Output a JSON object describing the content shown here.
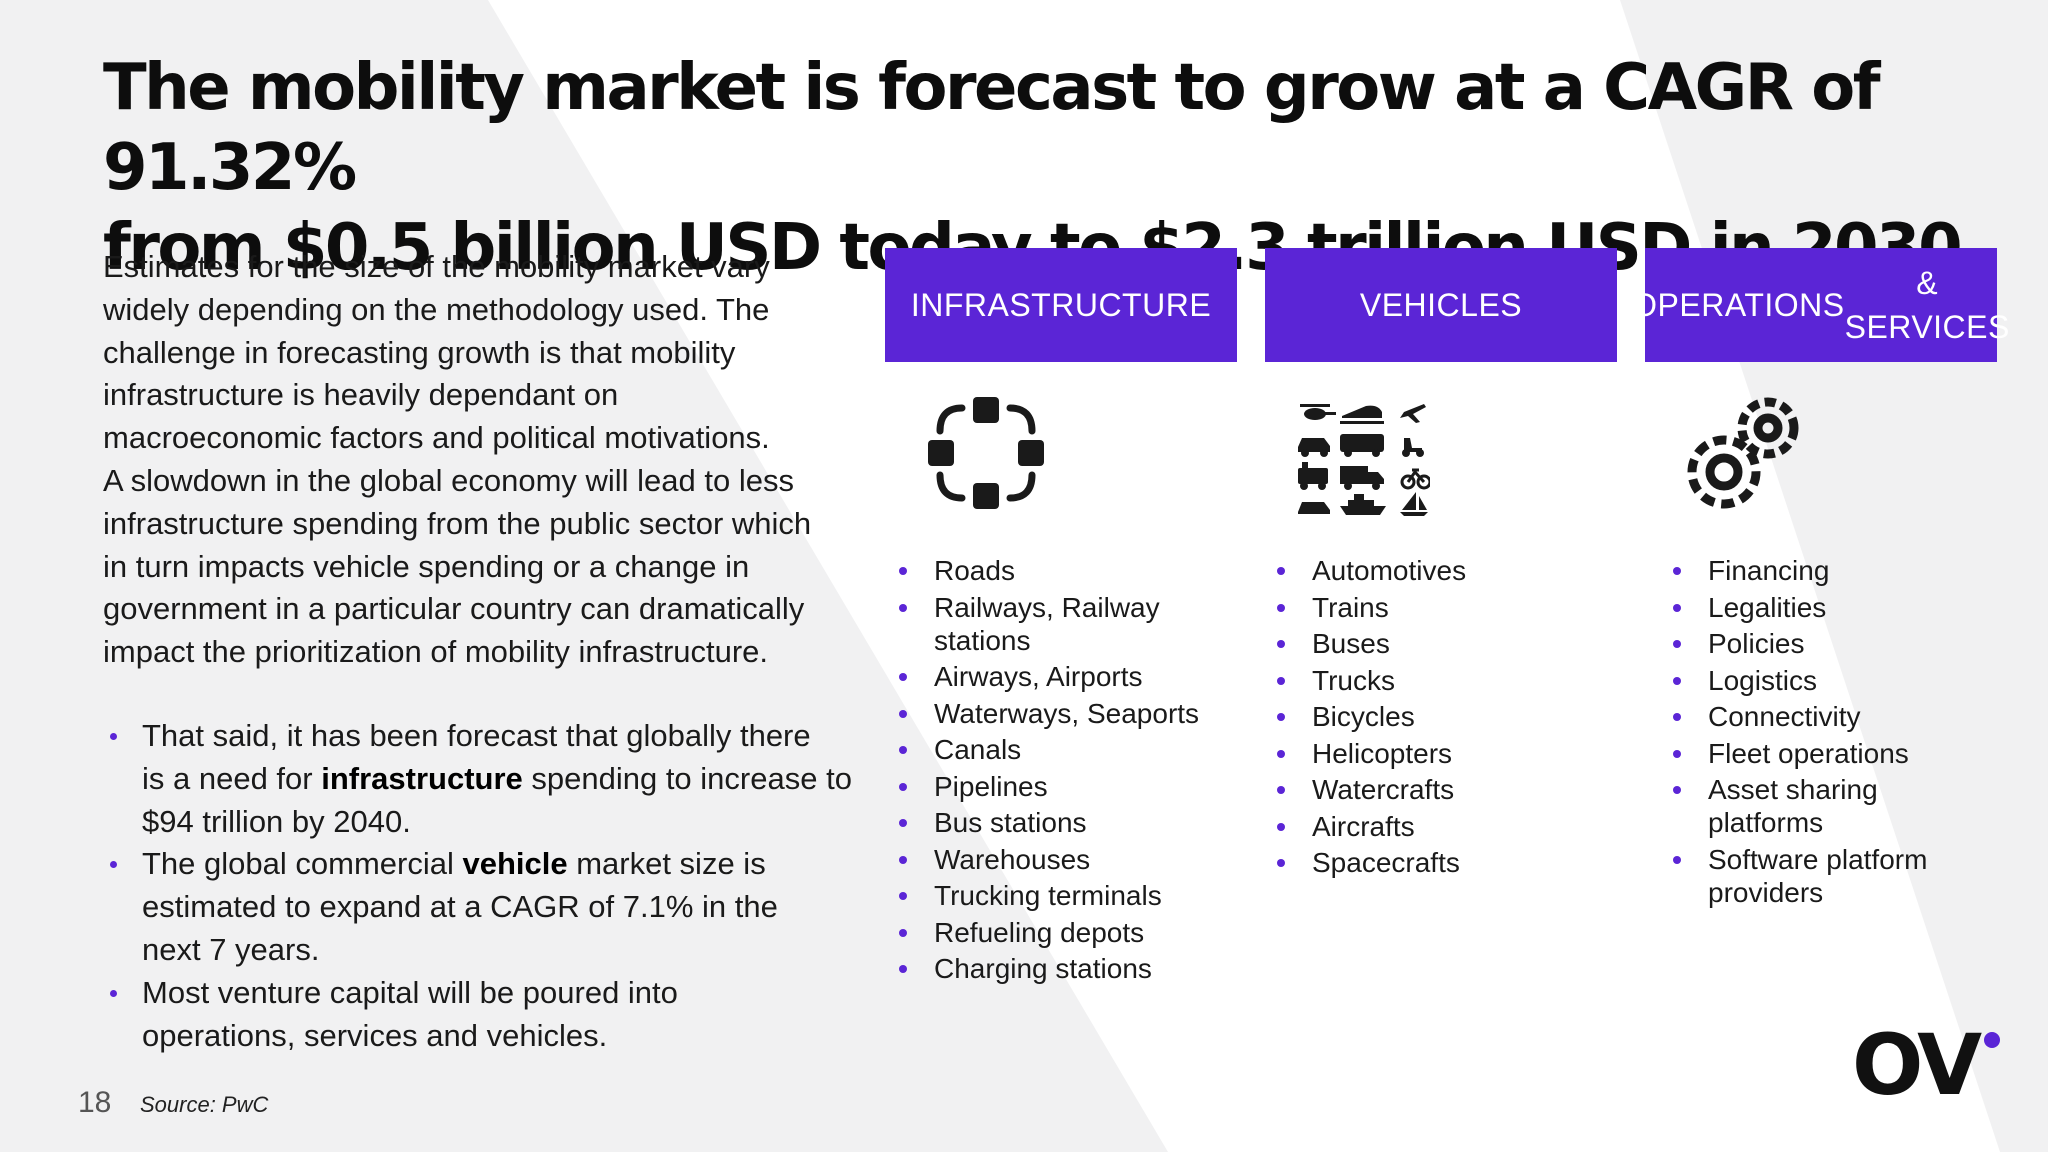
{
  "title_line1": "The mobility market is forecast to grow at a CAGR of 91.32%",
  "title_line2": "from $0.5 billion USD today to $2.3 trillion USD in 2030.",
  "intro": {
    "l1": "Estimates for the size of the mobility market vary",
    "l2": "widely depending on the methodology used. The",
    "l3": "challenge in forecasting growth is that mobility",
    "l4": "infrastructure is heavily dependant on",
    "l5": "macroeconomic factors and political motivations.",
    "l6": "A slowdown in the global economy will lead to less",
    "l7": "infrastructure spending from the public sector which",
    "l8": "in turn impacts vehicle spending or a change in",
    "l9": "government in a particular country can dramatically",
    "l10": "impact the prioritization of mobility infrastructure."
  },
  "bullets": {
    "b1_l1": "That said, it has been forecast that globally there",
    "b1_pre": "is a need for ",
    "b1_bold": "infrastructure",
    "b1_post": " spending to increase to",
    "b1_l3": "$94 trillion by 2040.",
    "b2_pre": "The global commercial ",
    "b2_bold": "vehicle",
    "b2_post": " market size is",
    "b2_l2": "estimated to expand at a CAGR of 7.1% in the",
    "b2_l3": "next 7 years.",
    "b3_l1": "Most venture capital will be poured into",
    "b3_l2": "operations, services and vehicles."
  },
  "columns": {
    "infrastructure": {
      "header": "INFRASTRUCTURE",
      "icon": "nodes-icon",
      "items": [
        "Roads",
        "Railways, Railway stations",
        "Airways, Airports",
        "Waterways, Seaports",
        "Canals",
        "Pipelines",
        "Bus stations",
        "Warehouses",
        "Trucking terminals",
        "Refueling depots",
        "Charging stations"
      ]
    },
    "vehicles": {
      "header": "VEHICLES",
      "icon": "vehicles-grid-icon",
      "items": [
        "Automotives",
        "Trains",
        "Buses",
        "Trucks",
        "Bicycles",
        "Helicopters",
        "Watercrafts",
        "Aircrafts",
        "Spacecrafts"
      ]
    },
    "operations": {
      "header_l1": "OPERATIONS",
      "header_l2": "& SERVICES",
      "icon": "gears-icon",
      "items": [
        "Financing",
        "Legalities",
        "Policies",
        "Logistics",
        "Connectivity",
        "Fleet operations",
        "Asset sharing platforms",
        "Software platform providers"
      ]
    }
  },
  "footer": {
    "page_number": "18",
    "source": "Source: PwC",
    "logo_text": "OV"
  },
  "colors": {
    "accent": "#5B25D6",
    "header_text": "#FFFFFF",
    "background_gray": "#F1F1F2"
  }
}
